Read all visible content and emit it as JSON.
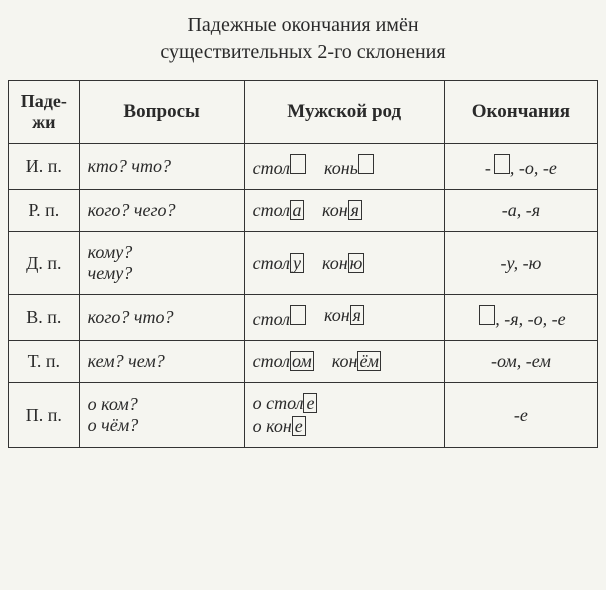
{
  "title_line1": "Падежные окончания имён",
  "title_line2": "существительных 2-го склонения",
  "headers": {
    "case": "Паде-\nжи",
    "questions": "Вопросы",
    "gender": "Мужской род",
    "endings": "Окончания"
  },
  "rows": [
    {
      "case": "И. п.",
      "question": "кто? что?",
      "ex1_stem": "стол",
      "ex1_end": "",
      "ex2_stem": "конь",
      "ex2_end": "",
      "endings_pre": "-",
      "endings_post": ", -о, -е",
      "endings_box": true
    },
    {
      "case": "Р. п.",
      "question": "кого? чего?",
      "ex1_stem": "стол",
      "ex1_end": "а",
      "ex2_stem": "кон",
      "ex2_end": "я",
      "endings_text": "-а, -я"
    },
    {
      "case": "Д. п.",
      "question": "кому?\nчему?",
      "ex1_stem": "стол",
      "ex1_end": "у",
      "ex2_stem": "кон",
      "ex2_end": "ю",
      "endings_text": "-у, -ю"
    },
    {
      "case": "В. п.",
      "question": "кого? что?",
      "ex1_stem": "стол",
      "ex1_end": "",
      "ex2_stem": "кон",
      "ex2_end": "я",
      "endings_pre": "",
      "endings_post": ", -я, -о, -е",
      "endings_box": true
    },
    {
      "case": "Т. п.",
      "question": "кем? чем?",
      "ex1_stem": "стол",
      "ex1_end": "ом",
      "ex2_stem": "кон",
      "ex2_end": "ём",
      "endings_text": "-ом,  -ем"
    },
    {
      "case": "П. п.",
      "question": "о ком?\nо чём?",
      "ex1_stem": "о стол",
      "ex1_end": "е",
      "ex2_stem": "о кон",
      "ex2_end": "е",
      "vert": true,
      "endings_text": "-е"
    }
  ],
  "colors": {
    "text": "#2a2a2a",
    "border": "#333333",
    "background": "#f5f5f0"
  },
  "font": {
    "family": "serif",
    "title_size_pt": 15,
    "cell_size_pt": 14
  }
}
